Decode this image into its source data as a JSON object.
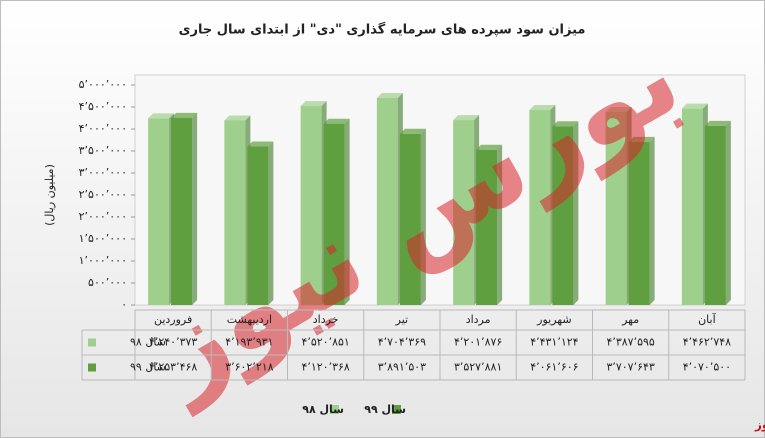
{
  "chart_data": {
    "type": "bar",
    "title": "میزان سود سپرده های سرمایه گذاری \"دی\" از ابتدای سال جاری",
    "y_label": "(میلیون ریال)",
    "categories": [
      "فروردین",
      "اردیبهشت",
      "خرداد",
      "تیر",
      "مرداد",
      "شهریور",
      "مهر",
      "آبان"
    ],
    "series": [
      {
        "name": "سال ۹۸",
        "color": "#9fcf8c",
        "values": [
          4240373,
          4193931,
          4520851,
          4704369,
          4201876,
          4431124,
          4387595,
          4462748
        ],
        "value_labels": [
          "۴٬۲۴۰٬۳۷۳",
          "۴٬۱۹۳٬۹۳۱",
          "۴٬۵۲۰٬۸۵۱",
          "۴٬۷۰۴٬۳۶۹",
          "۴٬۲۰۱٬۸۷۶",
          "۴٬۴۳۱٬۱۲۴",
          "۴٬۳۸۷٬۵۹۵",
          "۴٬۴۶۲٬۷۴۸"
        ]
      },
      {
        "name": "سال ۹۹",
        "color": "#5f9f3f",
        "values": [
          4253468,
          3602218,
          4120368,
          3891503,
          3527881,
          4061606,
          3707643,
          4070500
        ],
        "value_labels": [
          "۴٬۲۵۳٬۴۶۸",
          "۳٬۶۰۲٬۲۱۸",
          "۴٬۱۲۰٬۳۶۸",
          "۳٬۸۹۱٬۵۰۳",
          "۳٬۵۲۷٬۸۸۱",
          "۴٬۰۶۱٬۶۰۶",
          "۳٬۷۰۷٬۶۴۳",
          "۴٬۰۷۰٬۵۰۰"
        ]
      }
    ],
    "ylim": [
      0,
      5000000
    ],
    "yticks": [
      {
        "value": 0,
        "label": "۰"
      },
      {
        "value": 500000,
        "label": "۵۰۰٬۰۰۰"
      },
      {
        "value": 1000000,
        "label": "۱٬۰۰۰٬۰۰۰"
      },
      {
        "value": 1500000,
        "label": "۱٬۵۰۰٬۰۰۰"
      },
      {
        "value": 2000000,
        "label": "۲٬۰۰۰٬۰۰۰"
      },
      {
        "value": 2500000,
        "label": "۲٬۵۰۰٬۰۰۰"
      },
      {
        "value": 3000000,
        "label": "۳٬۰۰۰٬۰۰۰"
      },
      {
        "value": 3500000,
        "label": "۳٬۵۰۰٬۰۰۰"
      },
      {
        "value": 4000000,
        "label": "۴٬۰۰۰٬۰۰۰"
      },
      {
        "value": 4500000,
        "label": "۴٬۵۰۰٬۰۰۰"
      },
      {
        "value": 5000000,
        "label": "۵٬۰۰۰٬۰۰۰"
      }
    ],
    "watermark": "بورس نیوز"
  }
}
